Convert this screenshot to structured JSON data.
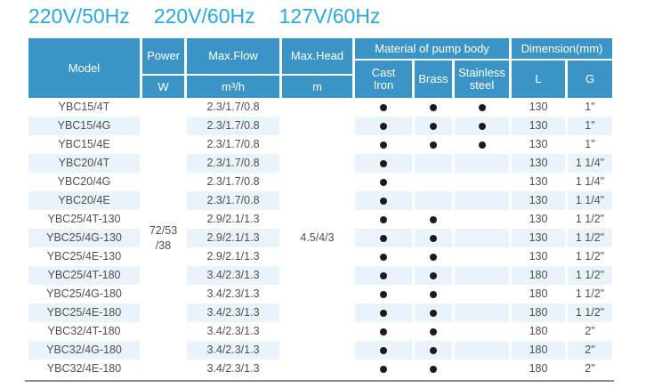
{
  "title": {
    "items": [
      "220V/50Hz",
      "220V/60Hz",
      "127V/60Hz"
    ]
  },
  "table": {
    "header": {
      "model": "Model",
      "power": {
        "label": "Power",
        "unit": "W"
      },
      "max_flow": {
        "label": "Max.Flow",
        "unit": "m³/h"
      },
      "max_head": {
        "label": "Max.Head",
        "unit": "m"
      },
      "material_group": {
        "label": "Material of pump body",
        "columns": [
          "Cast Iron",
          "Brass",
          "Stainless steel"
        ]
      },
      "dimension_group": {
        "label": "Dimension(mm)",
        "columns": [
          "L",
          "G"
        ]
      }
    },
    "merged_cells": {
      "power_w": [
        "72/53",
        "/38"
      ],
      "max_head_m": "4.5/4/3"
    },
    "rows": [
      {
        "model": "YBC15/4T",
        "max_flow": "2.3/1.7/0.8",
        "materials": [
          1,
          1,
          1
        ],
        "L": "130",
        "G": "1\""
      },
      {
        "model": "YBC15/4G",
        "max_flow": "2.3/1.7/0.8",
        "materials": [
          1,
          1,
          1
        ],
        "L": "130",
        "G": "1\""
      },
      {
        "model": "YBC15/4E",
        "max_flow": "2.3/1.7/0.8",
        "materials": [
          1,
          1,
          1
        ],
        "L": "130",
        "G": "1\""
      },
      {
        "model": "YBC20/4T",
        "max_flow": "2.3/1.7/0.8",
        "materials": [
          1,
          0,
          0
        ],
        "L": "130",
        "G": "1 1/4\""
      },
      {
        "model": "YBC20/4G",
        "max_flow": "2.3/1.7/0.8",
        "materials": [
          1,
          0,
          0
        ],
        "L": "130",
        "G": "1 1/4\""
      },
      {
        "model": "YBC20/4E",
        "max_flow": "2.3/1.7/0.8",
        "materials": [
          1,
          0,
          0
        ],
        "L": "130",
        "G": "1 1/4\""
      },
      {
        "model": "YBC25/4T-130",
        "max_flow": "2.9/2.1/1.3",
        "materials": [
          1,
          1,
          0
        ],
        "L": "130",
        "G": "1 1/2\""
      },
      {
        "model": "YBC25/4G-130",
        "max_flow": "2.9/2.1/1.3",
        "materials": [
          1,
          1,
          0
        ],
        "L": "130",
        "G": "1 1/2\""
      },
      {
        "model": "YBC25/4E-130",
        "max_flow": "2.9/2.1/1.3",
        "materials": [
          1,
          1,
          0
        ],
        "L": "130",
        "G": "1 1/2\""
      },
      {
        "model": "YBC25/4T-180",
        "max_flow": "3.4/2.3/1.3",
        "materials": [
          1,
          1,
          0
        ],
        "L": "180",
        "G": "1 1/2\""
      },
      {
        "model": "YBC25/4G-180",
        "max_flow": "3.4/2.3/1.3",
        "materials": [
          1,
          1,
          0
        ],
        "L": "180",
        "G": "1 1/2\""
      },
      {
        "model": "YBC25/4E-180",
        "max_flow": "3.4/2.3/1.3",
        "materials": [
          1,
          1,
          0
        ],
        "L": "180",
        "G": "1 1/2\""
      },
      {
        "model": "YBC32/4T-180",
        "max_flow": "3.4/2.3/1.3",
        "materials": [
          1,
          1,
          0
        ],
        "L": "180",
        "G": "2\""
      },
      {
        "model": "YBC32/4G-180",
        "max_flow": "3.4/2.3/1.3",
        "materials": [
          1,
          1,
          0
        ],
        "L": "180",
        "G": "2\""
      },
      {
        "model": "YBC32/4E-180",
        "max_flow": "3.4/2.3/1.3",
        "materials": [
          1,
          1,
          0
        ],
        "L": "180",
        "G": "2\""
      }
    ]
  },
  "colors": {
    "header_bg": "#3a95c6",
    "title_text": "#2aa7de",
    "row_shade": "#e9f3fa",
    "body_text": "#4e5052",
    "dot": "#1b1b1b",
    "bottom_rule": "#8e8e8e"
  }
}
